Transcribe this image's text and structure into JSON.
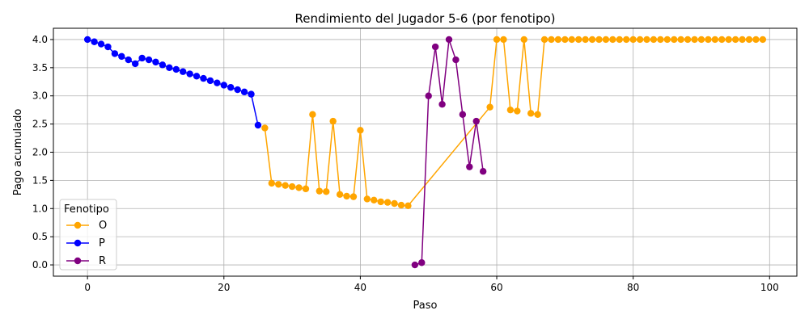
{
  "chart_data": {
    "type": "line",
    "title": "Rendimiento del Jugador 5-6 (por fenotipo)",
    "xlabel": "Paso",
    "ylabel": "Pago acumulado",
    "xlim": [
      -5,
      104
    ],
    "ylim": [
      -0.2,
      4.2
    ],
    "xticks": [
      0,
      20,
      40,
      60,
      80,
      100
    ],
    "xtick_labels": [
      "0",
      "20",
      "40",
      "60",
      "80",
      "100"
    ],
    "yticks": [
      0.0,
      0.5,
      1.0,
      1.5,
      2.0,
      2.5,
      3.0,
      3.5,
      4.0
    ],
    "ytick_labels": [
      "0.0",
      "0.5",
      "1.0",
      "1.5",
      "2.0",
      "2.5",
      "3.0",
      "3.5",
      "4.0"
    ],
    "grid": true,
    "legend": {
      "title": "Fenotipo",
      "position": "lower-left"
    },
    "series": [
      {
        "name": "O",
        "color": "#FFA500",
        "x": [
          26,
          27,
          28,
          29,
          30,
          31,
          32,
          33,
          34,
          35,
          36,
          37,
          38,
          39,
          40,
          41,
          42,
          43,
          44,
          45,
          46,
          47,
          59,
          60,
          61,
          62,
          63,
          64,
          65,
          66,
          67,
          68,
          69,
          70,
          71,
          72,
          73,
          74,
          75,
          76,
          77,
          78,
          79,
          80,
          81,
          82,
          83,
          84,
          85,
          86,
          87,
          88,
          89,
          90,
          91,
          92,
          93,
          94,
          95,
          96,
          97,
          98,
          99
        ],
        "y": [
          2.43,
          1.45,
          1.43,
          1.41,
          1.39,
          1.37,
          1.35,
          2.67,
          1.31,
          1.3,
          2.55,
          1.25,
          1.22,
          1.21,
          2.39,
          1.17,
          1.15,
          1.12,
          1.11,
          1.09,
          1.06,
          1.05,
          2.8,
          4.0,
          4.0,
          2.75,
          2.73,
          4.0,
          2.69,
          2.67,
          4.0,
          4.0,
          4.0,
          4.0,
          4.0,
          4.0,
          4.0,
          4.0,
          4.0,
          4.0,
          4.0,
          4.0,
          4.0,
          4.0,
          4.0,
          4.0,
          4.0,
          4.0,
          4.0,
          4.0,
          4.0,
          4.0,
          4.0,
          4.0,
          4.0,
          4.0,
          4.0,
          4.0,
          4.0,
          4.0,
          4.0,
          4.0,
          4.0
        ]
      },
      {
        "name": "P",
        "color": "#0000FF",
        "x": [
          0,
          1,
          2,
          3,
          4,
          5,
          6,
          7,
          8,
          9,
          10,
          11,
          12,
          13,
          14,
          15,
          16,
          17,
          18,
          19,
          20,
          21,
          22,
          23,
          24,
          25
        ],
        "y": [
          4.0,
          3.96,
          3.92,
          3.87,
          3.75,
          3.7,
          3.64,
          3.57,
          3.67,
          3.64,
          3.6,
          3.55,
          3.5,
          3.47,
          3.43,
          3.39,
          3.35,
          3.31,
          3.27,
          3.23,
          3.19,
          3.15,
          3.11,
          3.07,
          3.03,
          2.48
        ]
      },
      {
        "name": "R",
        "color": "#800080",
        "x": [
          48,
          49,
          50,
          51,
          52,
          53,
          54,
          55,
          56,
          57,
          58
        ],
        "y": [
          0.0,
          0.04,
          3.0,
          3.87,
          2.85,
          4.0,
          3.64,
          2.67,
          1.74,
          2.55,
          1.66
        ]
      }
    ]
  }
}
